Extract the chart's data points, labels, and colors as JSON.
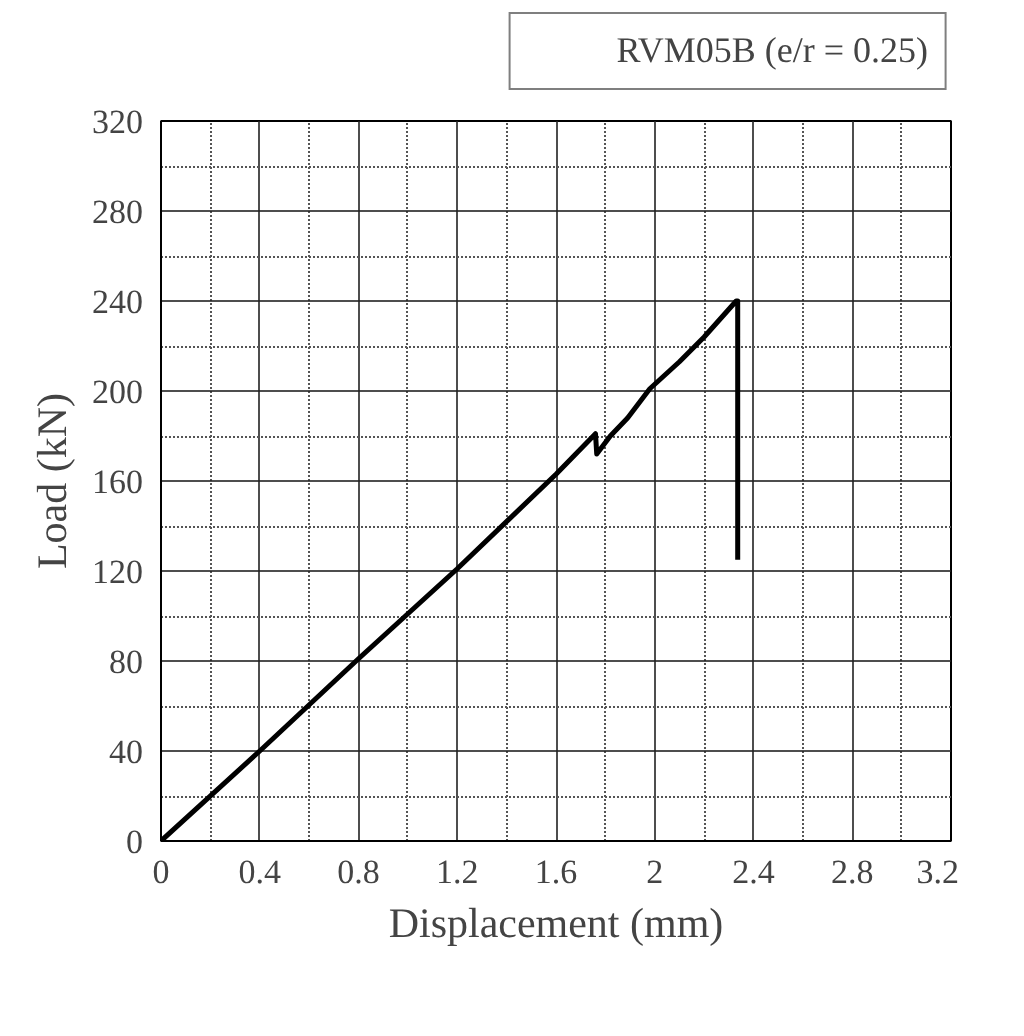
{
  "chart_data": {
    "type": "line",
    "xlabel": "Displacement (mm)",
    "ylabel": "Load (kN)",
    "series": [
      {
        "name": "RVM05B (e/r = 0.25)",
        "color": "#000000",
        "x": [
          0,
          0.4,
          0.8,
          1.2,
          1.6,
          1.76,
          1.765,
          1.82,
          1.89,
          1.98,
          2.1,
          2.2,
          2.33,
          2.336,
          2.336
        ],
        "values": [
          0,
          40,
          81,
          121,
          163,
          181,
          172,
          180,
          188,
          201,
          213,
          224,
          240,
          240,
          125
        ]
      }
    ],
    "xlim": [
      0,
      3.2
    ],
    "ylim": [
      0,
      320
    ],
    "xticks": [
      0,
      0.4,
      0.8,
      1.2,
      1.6,
      2,
      2.4,
      2.8,
      3.2
    ],
    "yticks": [
      0,
      40,
      80,
      120,
      160,
      200,
      240,
      280,
      320
    ],
    "grid": true,
    "legend": "top right",
    "line_style": "solid",
    "marker": "none"
  }
}
